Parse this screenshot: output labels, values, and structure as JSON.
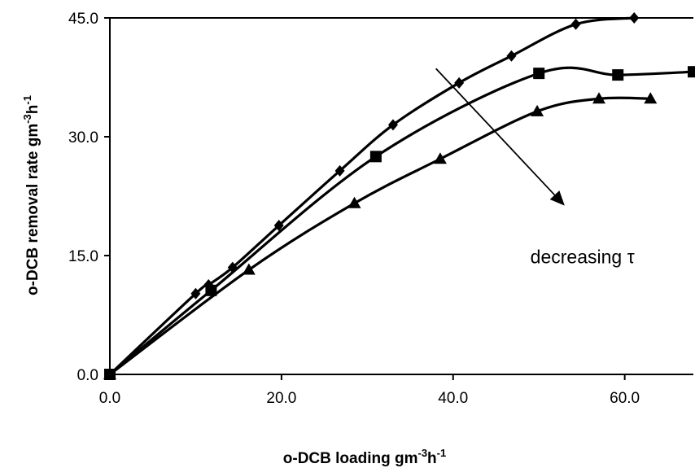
{
  "chart_data": {
    "type": "line",
    "xlabel_main": "o-DCB loading gm",
    "xlabel_sup1": "-3",
    "xlabel_mid": "h",
    "xlabel_sup2": "-1",
    "ylabel_main": "o-DCB removal rate gm",
    "ylabel_sup1": "-3",
    "ylabel_mid": "h",
    "ylabel_sup2": "-1",
    "xlim": [
      0,
      68
    ],
    "ylim": [
      0,
      45
    ],
    "x_ticks": [
      "0.0",
      "20.0",
      "40.0",
      "60.0"
    ],
    "x_tick_values": [
      0,
      20,
      40,
      60
    ],
    "y_ticks": [
      "0.0",
      "15.0",
      "30.0",
      "45.0"
    ],
    "y_tick_values": [
      0,
      15,
      30,
      45
    ],
    "grid": false,
    "annotation": {
      "text": "decreasing τ",
      "x": 49,
      "y": 14,
      "arrow_from": [
        38,
        38.6
      ],
      "arrow_to": [
        53,
        21.3
      ]
    },
    "series": [
      {
        "marker": "diamond",
        "points": [
          [
            0,
            0
          ],
          [
            10,
            10.2
          ],
          [
            11.5,
            11.3
          ],
          [
            14.3,
            13.5
          ],
          [
            19.7,
            18.8
          ],
          [
            26.8,
            25.7
          ],
          [
            33,
            31.5
          ],
          [
            40.7,
            36.8
          ],
          [
            46.8,
            40.2
          ],
          [
            54.3,
            44.2
          ],
          [
            61.1,
            45
          ]
        ]
      },
      {
        "marker": "square",
        "points": [
          [
            0,
            0
          ],
          [
            11.8,
            10.6
          ],
          [
            31,
            27.5
          ],
          [
            50,
            38
          ],
          [
            59.2,
            37.8
          ],
          [
            68,
            38.2
          ]
        ]
      },
      {
        "marker": "triangle",
        "points": [
          [
            0,
            0
          ],
          [
            16.2,
            13.2
          ],
          [
            28.5,
            21.6
          ],
          [
            38.5,
            27.2
          ],
          [
            49.8,
            33.2
          ],
          [
            57,
            34.8
          ],
          [
            63,
            34.8
          ]
        ]
      }
    ]
  }
}
